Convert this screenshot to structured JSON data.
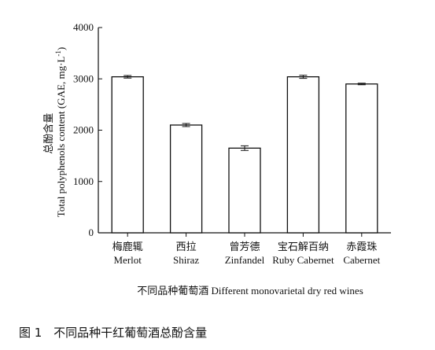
{
  "chart_data": {
    "type": "bar",
    "categories": [
      [
        "梅鹿辄",
        "Merlot"
      ],
      [
        "西拉",
        "Shiraz"
      ],
      [
        "曾芳德",
        "Zinfandel"
      ],
      [
        "宝石解百纳",
        "Ruby Cabernet"
      ],
      [
        "赤霞珠",
        "Cabernet"
      ]
    ],
    "values": [
      3040,
      2100,
      1650,
      3040,
      2900
    ],
    "errors": [
      25,
      30,
      45,
      30,
      15
    ],
    "ylim": [
      0,
      4000
    ],
    "yticks": [
      "0",
      "1000",
      "2000",
      "3000",
      "4000"
    ],
    "ylabel_cn": "总酚含量",
    "ylabel_en": "Total polyphenols content (GAE, mg·L",
    "ylabel_sup": "-1",
    "ylabel_end": ")",
    "xlabel": "不同品种葡萄酒 Different monovarietal dry red wines",
    "grid": false,
    "bar_color": "#ffffff",
    "edge_color": "#111111"
  },
  "caption": {
    "number": "图 1",
    "text": "不同品种干红葡萄酒总酚含量"
  }
}
